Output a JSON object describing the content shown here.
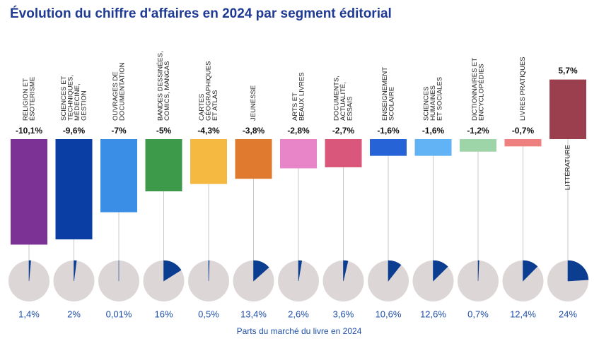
{
  "chart_data": {
    "type": "bar",
    "title": "Évolution du chiffre d'affaires en 2024 par segment éditorial",
    "categories": [
      [
        "RELIGION ET",
        "ÉSOTERISME"
      ],
      [
        "SCIENCES ET",
        "TECHNIQUES,",
        "MÉDECINE,",
        "GESTION"
      ],
      [
        "OUVRAGES DE",
        "DOCUMENTATION"
      ],
      [
        "BANDES DESSINÉES,",
        "COMICS, MANGAS"
      ],
      [
        "CARTES",
        "GÉOGRAPHIQUES",
        "ET ATLAS"
      ],
      [
        "JEUNESSE"
      ],
      [
        "ARTS ET",
        "BEAUX LIVRES"
      ],
      [
        "DOCUMENTS,",
        "ACTUALITÉ,",
        "ESSAIS"
      ],
      [
        "ENSEIGNEMENT",
        "SCOLAIRE"
      ],
      [
        "SCIENCES",
        "HUMAINES",
        "ET SOCIALES"
      ],
      [
        "DICTIONNAIRES ET",
        "ENCYCLOPÉDIES"
      ],
      [
        "LIVRES PRATIQUES"
      ],
      [
        "LITTÉRATURE"
      ]
    ],
    "values": [
      -10.1,
      -9.6,
      -7,
      -5,
      -4.3,
      -3.8,
      -2.8,
      -2.7,
      -1.6,
      -1.6,
      -1.2,
      -0.7,
      5.7
    ],
    "value_labels": [
      "-10,1%",
      "-9,6%",
      "-7%",
      "-5%",
      "-4,3%",
      "-3,8%",
      "-2,8%",
      "-2,7%",
      "-1,6%",
      "-1,6%",
      "-1,2%",
      "-0,7%",
      "5,7%"
    ],
    "colors": [
      "#7b3294",
      "#0a3ea4",
      "#3a8ee6",
      "#3d9a4a",
      "#f5b942",
      "#e07a2e",
      "#e884c8",
      "#d9577a",
      "#2563d6",
      "#62b3f5",
      "#9dd4a8",
      "#ef8080",
      "#9b3e4e"
    ],
    "shares": [
      1.4,
      2,
      0.01,
      16,
      0.5,
      13.4,
      2.6,
      3.6,
      10.6,
      12.6,
      0.7,
      12.4,
      24
    ],
    "share_labels": [
      "1,4%",
      "2%",
      "0,01%",
      "16%",
      "0,5%",
      "13,4%",
      "2,6%",
      "3,6%",
      "10,6%",
      "12,6%",
      "0,7%",
      "12,4%",
      "24%"
    ],
    "pie_color": "#0b3d91",
    "pie_background": "#ddd6d6",
    "shares_caption": "Parts du marché du livre en 2024"
  }
}
